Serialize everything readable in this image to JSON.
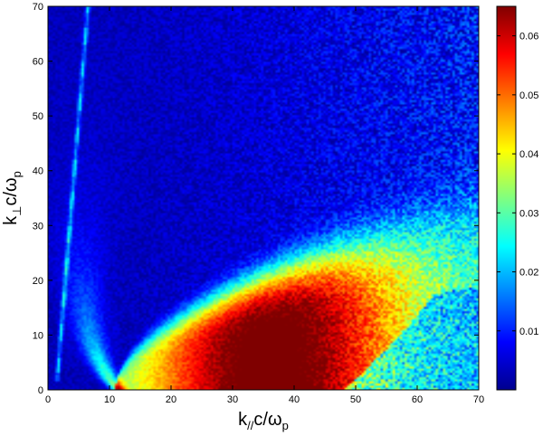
{
  "chart_data": {
    "type": "heatmap",
    "title": "",
    "xlabel": {
      "main": "k",
      "sub": "//",
      "rest": "c/ω",
      "sub2": "p"
    },
    "ylabel": {
      "main": "k",
      "sub": "⊥",
      "rest": "c/ω",
      "sub2": "p"
    },
    "xlim": [
      0,
      70
    ],
    "ylim": [
      0,
      70
    ],
    "x_ticks": [
      0,
      10,
      20,
      30,
      40,
      50,
      60,
      70
    ],
    "y_ticks": [
      0,
      10,
      20,
      30,
      40,
      50,
      60,
      70
    ],
    "colorbar": {
      "colormap": "jet",
      "range": [
        0,
        0.065
      ],
      "ticks": [
        0.01,
        0.02,
        0.03,
        0.04,
        0.05,
        0.06
      ],
      "tick_labels": [
        "0.01",
        "0.02",
        "0.03",
        "0.04",
        "0.05",
        "0.06"
      ]
    },
    "features": [
      {
        "name": "main-oblique-band",
        "description_points": [
          [
            12,
            2
          ],
          [
            35,
            3
          ],
          [
            70,
            15
          ]
        ],
        "peak_value": 0.063
      },
      {
        "name": "whistler-branch",
        "points": [
          [
            11,
            3
          ],
          [
            8,
            10
          ],
          [
            5,
            20
          ]
        ]
      },
      {
        "name": "thin-resonance-line",
        "points": [
          [
            1.5,
            2
          ],
          [
            6.5,
            70
          ]
        ]
      }
    ]
  }
}
